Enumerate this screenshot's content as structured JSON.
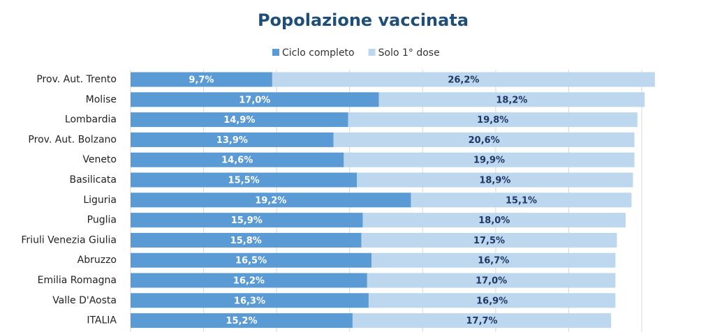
{
  "chart_data": {
    "type": "stacked-bar-horizontal",
    "title": "Popolazione vaccinata",
    "categories": [
      "Prov. Aut. Trento",
      "Molise",
      "Lombardia",
      "Prov. Aut. Bolzano",
      "Veneto",
      "Basilicata",
      "Liguria",
      "Puglia",
      "Friuli Venezia Giulia",
      "Abruzzo",
      "Emilia Romagna",
      "Valle D'Aosta",
      "ITALIA"
    ],
    "series": [
      {
        "name": "Ciclo completo",
        "color": "#5b9bd5",
        "label_color": "#ffffff",
        "values": [
          9.7,
          17.0,
          14.9,
          13.9,
          14.6,
          15.5,
          19.2,
          15.9,
          15.8,
          16.5,
          16.2,
          16.3,
          15.2
        ],
        "value_labels": [
          "9,7%",
          "17,0%",
          "14,9%",
          "13,9%",
          "14,6%",
          "15,5%",
          "19,2%",
          "15,9%",
          "15,8%",
          "16,5%",
          "16,2%",
          "16,3%",
          "15,2%"
        ]
      },
      {
        "name": "Solo 1° dose",
        "color": "#bdd7ee",
        "label_color": "#1f3864",
        "values": [
          26.2,
          18.2,
          19.8,
          20.6,
          19.9,
          18.9,
          15.1,
          18.0,
          17.5,
          16.7,
          17.0,
          16.9,
          17.7
        ],
        "value_labels": [
          "26,2%",
          "18,2%",
          "19,8%",
          "20,6%",
          "19,9%",
          "18,9%",
          "15,1%",
          "18,0%",
          "17,5%",
          "16,7%",
          "17,0%",
          "16,9%",
          "17,7%"
        ]
      }
    ],
    "xlim": [
      0,
      36
    ],
    "xticks": [
      0,
      5,
      10,
      15,
      20,
      25,
      30,
      35
    ],
    "grid": true,
    "legend": "top"
  }
}
